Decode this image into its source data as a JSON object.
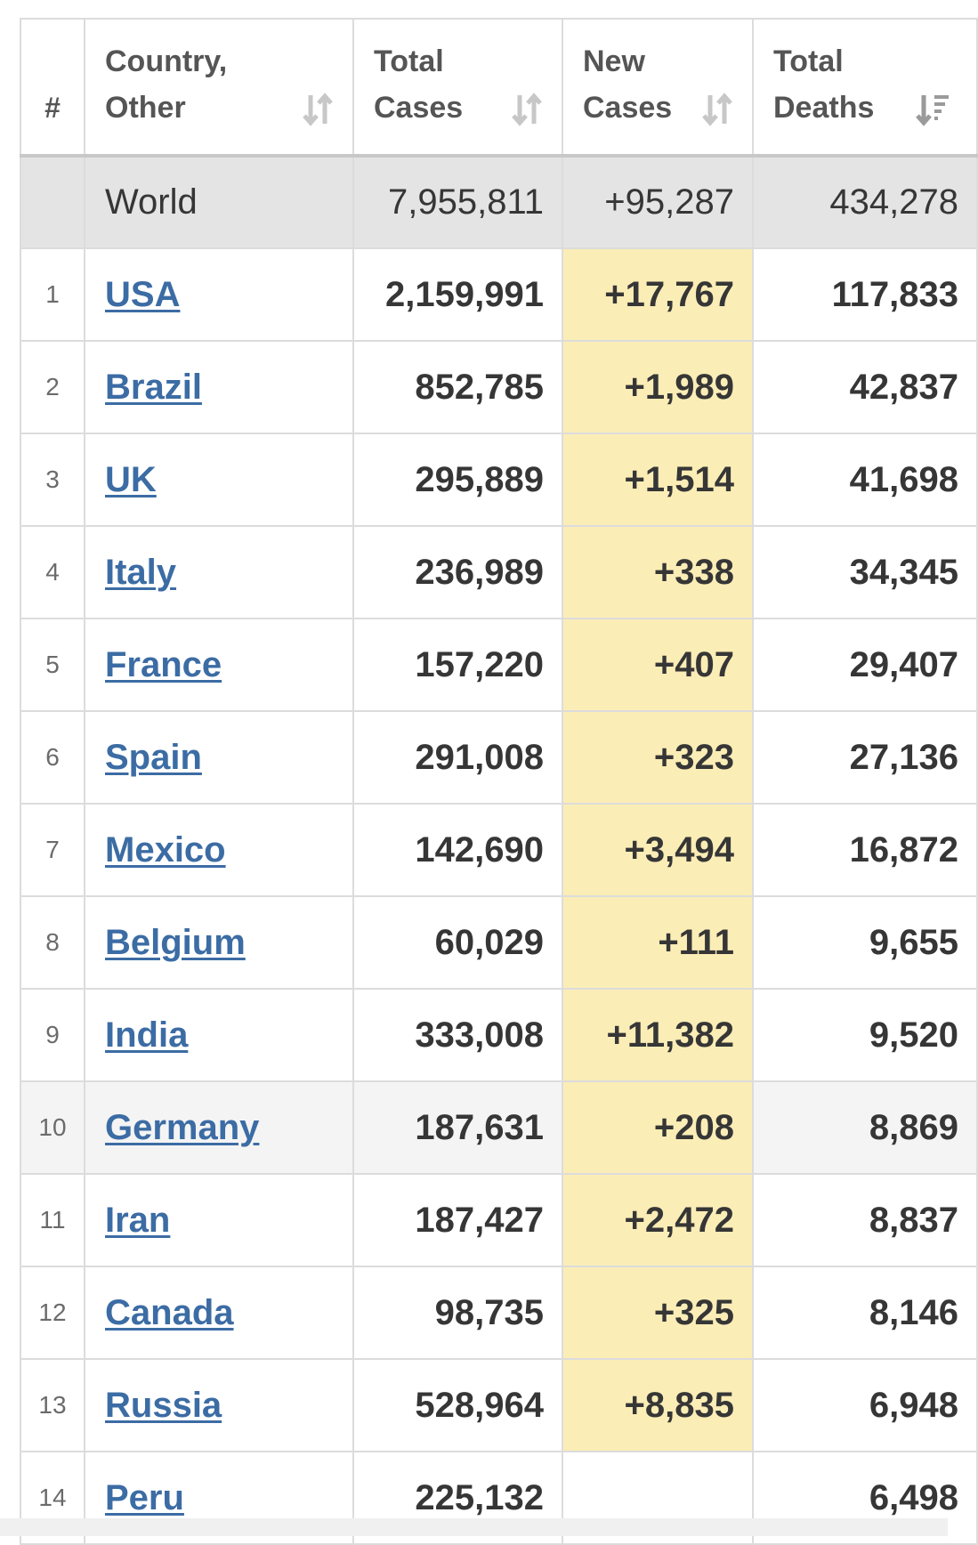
{
  "table": {
    "headers": {
      "rank": "#",
      "country": "Country, Other",
      "country_line1": "Country,",
      "country_line2": "Other",
      "total_cases_line1": "Total",
      "total_cases_line2": "Cases",
      "new_cases_line1": "New",
      "new_cases_line2": "Cases",
      "total_deaths_line1": "Total",
      "total_deaths_line2": "Deaths"
    },
    "sort_icons": {
      "country": "sort-both-icon",
      "total_cases": "sort-both-icon",
      "new_cases": "sort-both-icon",
      "total_deaths": "sort-descending-icon"
    },
    "world": {
      "name": "World",
      "total_cases": "7,955,811",
      "new_cases": "+95,287",
      "total_deaths": "434,278"
    },
    "rows": [
      {
        "rank": "1",
        "country": "USA",
        "total_cases": "2,159,991",
        "new_cases": "+17,767",
        "total_deaths": "117,833"
      },
      {
        "rank": "2",
        "country": "Brazil",
        "total_cases": "852,785",
        "new_cases": "+1,989",
        "total_deaths": "42,837"
      },
      {
        "rank": "3",
        "country": "UK",
        "total_cases": "295,889",
        "new_cases": "+1,514",
        "total_deaths": "41,698"
      },
      {
        "rank": "4",
        "country": "Italy",
        "total_cases": "236,989",
        "new_cases": "+338",
        "total_deaths": "34,345"
      },
      {
        "rank": "5",
        "country": "France",
        "total_cases": "157,220",
        "new_cases": "+407",
        "total_deaths": "29,407"
      },
      {
        "rank": "6",
        "country": "Spain",
        "total_cases": "291,008",
        "new_cases": "+323",
        "total_deaths": "27,136"
      },
      {
        "rank": "7",
        "country": "Mexico",
        "total_cases": "142,690",
        "new_cases": "+3,494",
        "total_deaths": "16,872"
      },
      {
        "rank": "8",
        "country": "Belgium",
        "total_cases": "60,029",
        "new_cases": "+111",
        "total_deaths": "9,655"
      },
      {
        "rank": "9",
        "country": "India",
        "total_cases": "333,008",
        "new_cases": "+11,382",
        "total_deaths": "9,520"
      },
      {
        "rank": "10",
        "country": "Germany",
        "total_cases": "187,631",
        "new_cases": "+208",
        "total_deaths": "8,869"
      },
      {
        "rank": "11",
        "country": "Iran",
        "total_cases": "187,427",
        "new_cases": "+2,472",
        "total_deaths": "8,837"
      },
      {
        "rank": "12",
        "country": "Canada",
        "total_cases": "98,735",
        "new_cases": "+325",
        "total_deaths": "8,146"
      },
      {
        "rank": "13",
        "country": "Russia",
        "total_cases": "528,964",
        "new_cases": "+8,835",
        "total_deaths": "6,948"
      },
      {
        "rank": "14",
        "country": "Peru",
        "total_cases": "225,132",
        "new_cases": "",
        "total_deaths": "6,498"
      }
    ]
  },
  "colors": {
    "link": "#3c6ca4",
    "new_cases_highlight": "#fbedb6",
    "world_row_bg": "#e4e4e4",
    "border": "#dcdcdc"
  }
}
